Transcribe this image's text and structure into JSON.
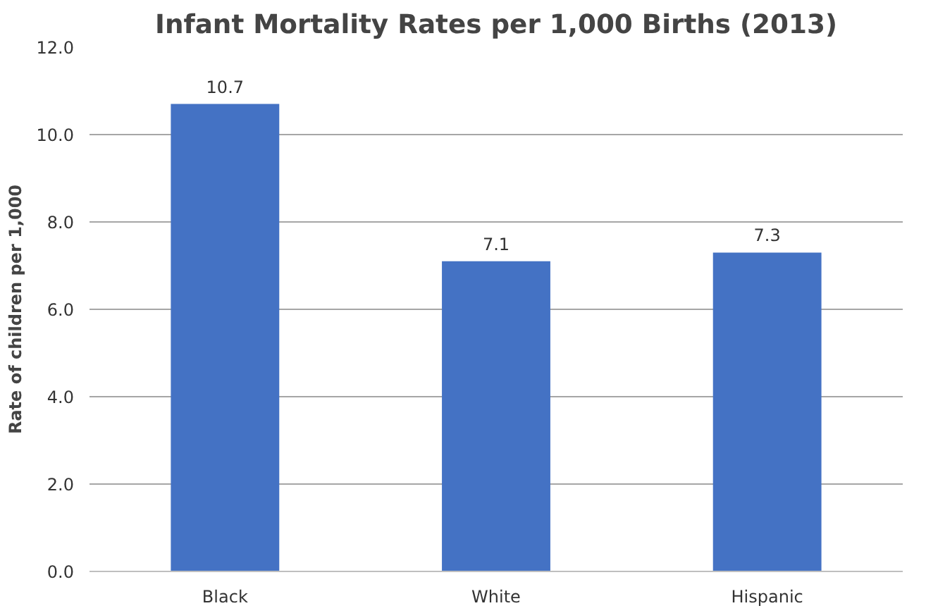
{
  "chart_data": {
    "type": "bar",
    "title": "Infant Mortality Rates per 1,000 Births (2013)",
    "ylabel": "Rate of children per 1,000",
    "categories": [
      "Black",
      "White",
      "Hispanic"
    ],
    "values": [
      10.7,
      7.1,
      7.3
    ],
    "color": "#4472c4",
    "ylim": [
      0,
      12
    ],
    "yticks": [
      {
        "value": 0,
        "label": "0.0"
      },
      {
        "value": 2,
        "label": "2.0"
      },
      {
        "value": 4,
        "label": "4.0"
      },
      {
        "value": 6,
        "label": "6.0"
      },
      {
        "value": 8,
        "label": "8.0"
      },
      {
        "value": 10,
        "label": "10.0"
      },
      {
        "value": 12,
        "label": "12.0"
      }
    ],
    "grid": "y",
    "data_labels": true
  }
}
